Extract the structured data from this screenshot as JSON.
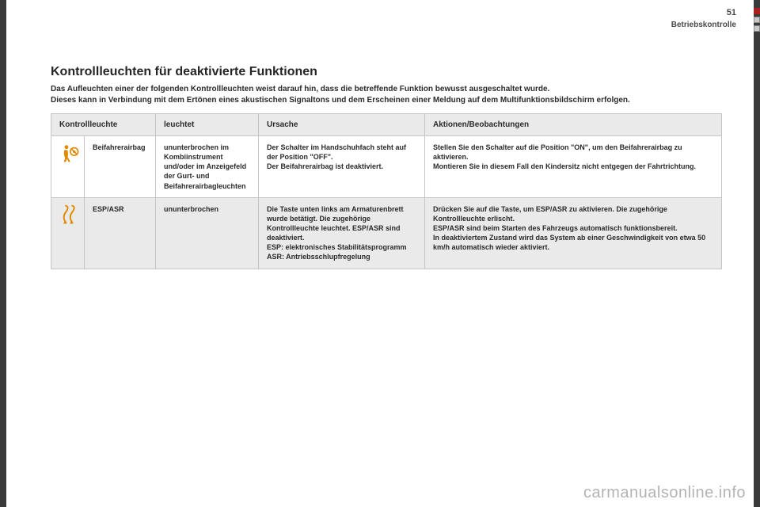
{
  "page": {
    "number": "51",
    "section_label": "Betriebskontrolle",
    "watermark": "carmanualsonline.info"
  },
  "heading": "Kontrollleuchten für deaktivierte Funktionen",
  "intro_line1": "Das Aufleuchten einer der folgenden Kontrollleuchten weist darauf hin, dass die betreffende Funktion bewusst ausgeschaltet wurde.",
  "intro_line2": "Dieses kann in Verbindung mit dem Ertönen eines akustischen Signaltons und dem Erscheinen einer Meldung auf dem Multifunktionsbildschirm erfolgen.",
  "table": {
    "headers": {
      "kontrollleuchte": "Kontrollleuchte",
      "leuchtet": "leuchtet",
      "ursache": "Ursache",
      "aktionen": "Aktionen/Beobachtungen"
    },
    "rows": [
      {
        "icon": "airbag",
        "icon_color": "#e08a00",
        "name": "Beifahrerairbag",
        "leuchtet": "ununterbrochen im Kombiinstrument und/oder im Anzeigefeld der Gurt- und Beifahrerairbagleuchten",
        "ursache": "Der Schalter im Handschuhfach steht auf der Position \"OFF\".\nDer Beifahrerairbag ist deaktiviert.",
        "aktionen": "Stellen Sie den Schalter auf die Position \"ON\", um den Beifahrerairbag zu aktivieren.\nMontieren Sie in diesem Fall den Kindersitz nicht entgegen der Fahrtrichtung."
      },
      {
        "icon": "esp",
        "icon_color": "#e08a00",
        "name": "ESP/ASR",
        "leuchtet": "ununterbrochen",
        "ursache": "Die Taste unten links am Armaturenbrett wurde betätigt. Die zugehörige Kontrollleuchte leuchtet. ESP/ASR sind deaktiviert.\nESP: elektronisches Stabilitätsprogramm\nASR: Antriebsschlupfregelung",
        "aktionen": "Drücken Sie auf die Taste, um ESP/ASR zu aktivieren. Die zugehörige Kontrollleuchte erlischt.\nESP/ASR sind beim Starten des Fahrzeugs automatisch funktionsbereit.\nIn deaktiviertem Zustand wird das System ab einer Geschwindigkeit von etwa 50 km/h automatisch wieder aktiviert."
      }
    ]
  },
  "colors": {
    "page_bg": "#ffffff",
    "outer_bg": "#3a3a3a",
    "header_bg": "#eaeaea",
    "border": "#c5c5c5",
    "text": "#2a2a2a",
    "icon": "#e08a00",
    "edge_active": "#a82020"
  }
}
